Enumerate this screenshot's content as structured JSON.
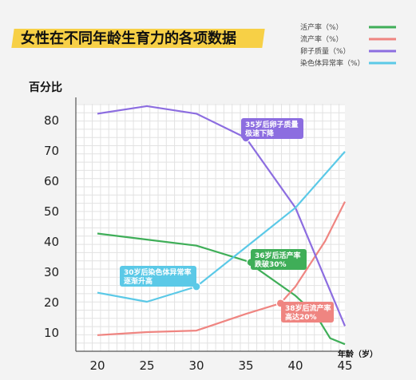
{
  "page": {
    "title": "女性在不同年龄生育力的各项数据"
  },
  "chart_data": {
    "type": "line",
    "title": "女性在不同年龄生育力的各项数据",
    "ylabel": "百分比",
    "xlabel": "年龄（岁）",
    "x": [
      20,
      25,
      30,
      35,
      40,
      45
    ],
    "xlim": [
      20,
      45
    ],
    "ylim": [
      5,
      85
    ],
    "yticks": [
      10,
      20,
      30,
      40,
      50,
      60,
      70,
      80
    ],
    "grid": true,
    "legend_position": "top-right",
    "series": [
      {
        "name": "活产率（%）",
        "color": "#3fae58",
        "points": [
          [
            20,
            42.5
          ],
          [
            25,
            40.5
          ],
          [
            30,
            38.5
          ],
          [
            35,
            33.5
          ],
          [
            40,
            22
          ],
          [
            42,
            16
          ],
          [
            43.5,
            8
          ],
          [
            45,
            6
          ]
        ]
      },
      {
        "name": "流产率（%）",
        "color": "#ef8581",
        "points": [
          [
            20,
            9
          ],
          [
            25,
            10
          ],
          [
            30,
            10.5
          ],
          [
            35,
            16
          ],
          [
            38.5,
            19.5
          ],
          [
            40,
            25
          ],
          [
            43,
            40
          ],
          [
            45,
            53
          ]
        ]
      },
      {
        "name": "卵子质量（%）",
        "color": "#8c6de0",
        "points": [
          [
            20,
            82
          ],
          [
            25,
            84.5
          ],
          [
            30,
            82
          ],
          [
            35,
            74
          ],
          [
            40,
            51
          ],
          [
            45,
            12
          ]
        ]
      },
      {
        "name": "染色体异常率（%）",
        "color": "#5bc9e7",
        "points": [
          [
            20,
            23
          ],
          [
            25,
            20
          ],
          [
            30,
            25
          ],
          [
            35,
            38
          ],
          [
            40,
            51
          ],
          [
            45,
            69.5
          ]
        ]
      }
    ],
    "annotations": [
      {
        "lines": [
          "35岁后卵子质量",
          "极速下降"
        ],
        "color": "#8c6de0",
        "at": [
          35,
          74
        ]
      },
      {
        "lines": [
          "36岁后活产率",
          "跌破30%"
        ],
        "color": "#3fae58",
        "at": [
          35.5,
          33
        ]
      },
      {
        "lines": [
          "30岁后染色体异常率",
          "逐渐升高"
        ],
        "color": "#5bc9e7",
        "at": [
          30,
          25
        ]
      },
      {
        "lines": [
          "38岁后流产率",
          "高达20%"
        ],
        "color": "#ef8581",
        "at": [
          38.5,
          19.5
        ]
      }
    ]
  }
}
